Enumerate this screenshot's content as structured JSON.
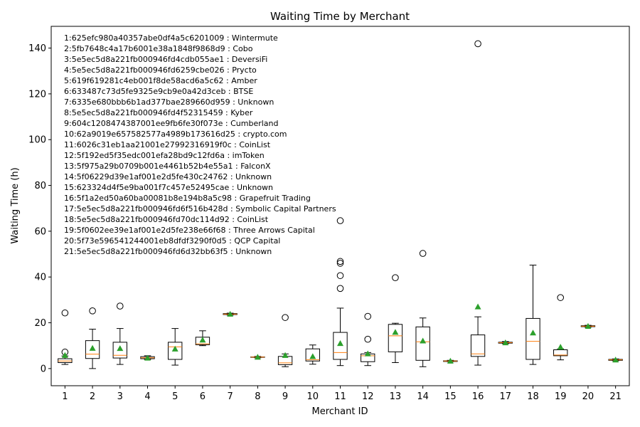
{
  "chart_data": {
    "type": "box",
    "title": "Waiting Time by Merchant",
    "xlabel": "Merchant ID",
    "ylabel": "Waiting Time (h)",
    "ylim": [
      -7.5,
      149.5
    ],
    "yticks": [
      0,
      20,
      40,
      60,
      80,
      100,
      120,
      140
    ],
    "categories": [
      "1",
      "2",
      "3",
      "4",
      "5",
      "6",
      "7",
      "8",
      "9",
      "10",
      "11",
      "12",
      "13",
      "14",
      "15",
      "16",
      "17",
      "18",
      "19",
      "20",
      "21"
    ],
    "boxes": [
      {
        "id": "1",
        "whislo": 1.8,
        "q1": 2.6,
        "med": 3.3,
        "q3": 4.3,
        "whishi": 5.5,
        "mean": 5.8,
        "fliers": [
          7.2,
          24.3
        ]
      },
      {
        "id": "2",
        "whislo": 0.0,
        "q1": 4.4,
        "med": 6.3,
        "q3": 12.2,
        "whishi": 17.2,
        "mean": 8.9,
        "fliers": [
          25.2
        ]
      },
      {
        "id": "3",
        "whislo": 1.8,
        "q1": 4.6,
        "med": 5.8,
        "q3": 11.5,
        "whishi": 17.5,
        "mean": 8.8,
        "fliers": [
          27.3
        ]
      },
      {
        "id": "4",
        "whislo": 4.0,
        "q1": 4.3,
        "med": 4.7,
        "q3": 5.2,
        "whishi": 5.6,
        "mean": 4.6,
        "fliers": []
      },
      {
        "id": "5",
        "whislo": 1.5,
        "q1": 4.0,
        "med": 9.5,
        "q3": 11.5,
        "whishi": 17.5,
        "mean": 8.6,
        "fliers": []
      },
      {
        "id": "6",
        "whislo": 10.0,
        "q1": 10.4,
        "med": 10.8,
        "q3": 13.7,
        "whishi": 16.5,
        "mean": 12.5,
        "fliers": []
      },
      {
        "id": "7",
        "whislo": 23.4,
        "q1": 23.6,
        "med": 23.8,
        "q3": 24.0,
        "whishi": 24.2,
        "mean": 23.8,
        "fliers": []
      },
      {
        "id": "8",
        "whislo": 4.7,
        "q1": 4.9,
        "med": 5.0,
        "q3": 5.1,
        "whishi": 5.3,
        "mean": 5.0,
        "fliers": []
      },
      {
        "id": "9",
        "whislo": 0.8,
        "q1": 1.7,
        "med": 2.5,
        "q3": 5.3,
        "whishi": 6.4,
        "mean": 5.8,
        "fliers": [
          22.3
        ]
      },
      {
        "id": "10",
        "whislo": 1.9,
        "q1": 3.3,
        "med": 3.9,
        "q3": 8.6,
        "whishi": 10.3,
        "mean": 5.3,
        "fliers": []
      },
      {
        "id": "11",
        "whislo": 1.3,
        "q1": 4.0,
        "med": 7.0,
        "q3": 15.8,
        "whishi": 26.4,
        "mean": 11.0,
        "fliers": [
          35.0,
          40.6,
          46.0,
          46.8,
          64.6
        ]
      },
      {
        "id": "12",
        "whislo": 1.3,
        "q1": 3.0,
        "med": 5.6,
        "q3": 6.4,
        "whishi": 7.0,
        "mean": 6.5,
        "fliers": [
          12.8,
          22.8
        ]
      },
      {
        "id": "13",
        "whislo": 2.6,
        "q1": 7.3,
        "med": 14.3,
        "q3": 19.3,
        "whishi": 19.8,
        "mean": 15.9,
        "fliers": [
          39.7
        ]
      },
      {
        "id": "14",
        "whislo": 0.8,
        "q1": 3.6,
        "med": 11.7,
        "q3": 18.2,
        "whishi": 22.1,
        "mean": 12.1,
        "fliers": [
          50.3
        ]
      },
      {
        "id": "15",
        "whislo": 3.0,
        "q1": 3.1,
        "med": 3.3,
        "q3": 3.4,
        "whishi": 3.6,
        "mean": 3.3,
        "fliers": []
      },
      {
        "id": "16",
        "whislo": 1.5,
        "q1": 5.3,
        "med": 6.4,
        "q3": 14.7,
        "whishi": 22.6,
        "mean": 27.0,
        "fliers": [
          141.9
        ]
      },
      {
        "id": "17",
        "whislo": 10.9,
        "q1": 11.1,
        "med": 11.3,
        "q3": 11.5,
        "whishi": 11.8,
        "mean": 11.3,
        "fliers": []
      },
      {
        "id": "18",
        "whislo": 1.8,
        "q1": 4.0,
        "med": 11.9,
        "q3": 21.9,
        "whishi": 45.2,
        "mean": 15.6,
        "fliers": []
      },
      {
        "id": "19",
        "whislo": 3.8,
        "q1": 5.6,
        "med": 5.9,
        "q3": 8.2,
        "whishi": 8.6,
        "mean": 9.4,
        "fliers": [
          31.0
        ]
      },
      {
        "id": "20",
        "whislo": 18.1,
        "q1": 18.3,
        "med": 18.5,
        "q3": 18.7,
        "whishi": 18.9,
        "mean": 18.5,
        "fliers": []
      },
      {
        "id": "21",
        "whislo": 3.4,
        "q1": 3.6,
        "med": 3.8,
        "q3": 4.0,
        "whishi": 4.2,
        "mean": 3.8,
        "fliers": []
      }
    ],
    "legend_position": "upper-left",
    "legend_lines": [
      "1:625efc980a40357abe0df4a5c6201009 : Wintermute",
      "2:5fb7648c4a17b6001e38a1848f9868d9 : Cobo",
      "3:5e5ec5d8a221fb000946fd4cdb055ae1 : DeversiFi",
      "4:5e5ec5d8a221fb000946fd6259cbe026 : Prycto",
      "5:619f619281c4eb001f8de58acd6a5c62 : Amber",
      "6:633487c73d5fe9325e9cb9e0a42d3ceb : BTSE",
      "7:6335e680bbb6b1ad377bae289660d959 : Unknown",
      "8:5e5ec5d8a221fb000946fd4f52315459 : Kyber",
      "9:604c1208474387001ee9fb6fe30f073e : Cumberland",
      "10:62a9019e657582577a4989b173616d25 : crypto.com",
      "11:6026c31eb1aa21001e27992316919f0c : CoinList",
      "12:5f192ed5f35edc001efa28bd9c12fd6a : imToken",
      "13:5f975a29b0709b001e4461b52b4e55a1 : FalconX",
      "14:5f06229d39e1af001e2d5fe430c24762 : Unknown",
      "15:623324d4f5e9ba001f7c457e52495cae : Unknown",
      "16:5f1a2ed50a60ba00081b8e194b8a5c98 : Grapefruit Trading",
      "17:5e5ec5d8a221fb000946fd6f516b428d : Symbolic Capital Partners",
      "18:5e5ec5d8a221fb000946fd70dc114d92 : CoinList",
      "19:5f0602ee39e1af001e2d5fe238e66f68 : Three Arrows Capital",
      "20:5f73e596541244001eb8dfdf3290f0d5 : QCP Capital",
      "21:5e5ec5d8a221fb000946fd6d32bb63f5 : Unknown"
    ],
    "colors": {
      "box": "#000000",
      "median": "#ff7f0e",
      "mean": "#2ca02c",
      "flier": "#000000"
    }
  }
}
